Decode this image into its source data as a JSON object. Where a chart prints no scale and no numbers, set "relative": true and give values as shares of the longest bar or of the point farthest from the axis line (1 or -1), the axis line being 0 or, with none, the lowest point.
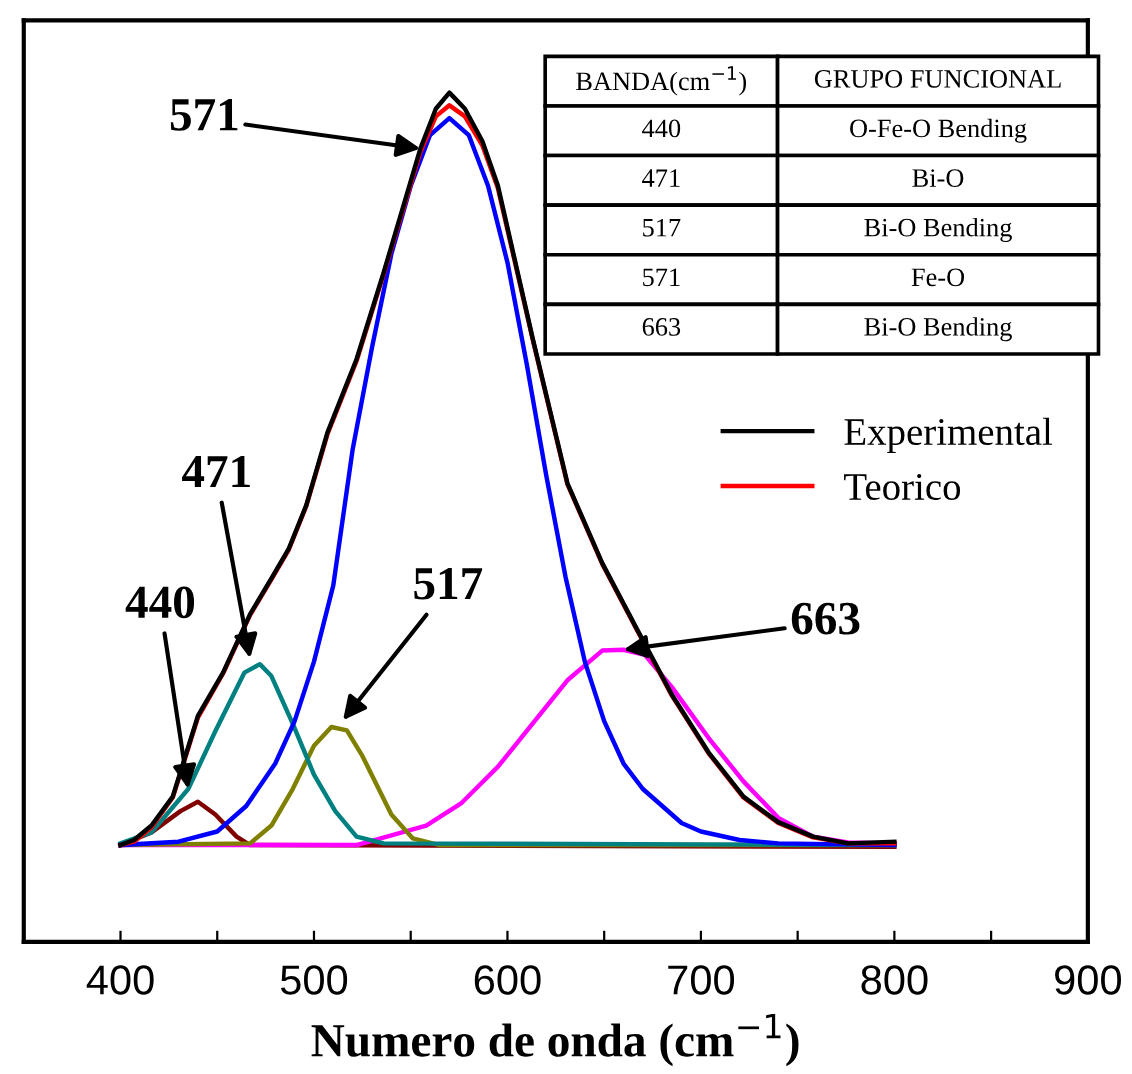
{
  "chart_data": {
    "type": "line",
    "relative": true,
    "xlabel": "Numero de onda (cm$^{−1}$)",
    "xlim": [
      350,
      900
    ],
    "xticks": [
      {
        "value": 350,
        "label": null
      },
      400,
      {
        "value": 450,
        "label": null
      },
      500,
      {
        "value": 550,
        "label": null
      },
      600,
      {
        "value": 650,
        "label": null
      },
      700,
      {
        "value": 750,
        "label": null
      },
      800,
      {
        "value": 850,
        "label": null
      },
      900
    ],
    "tick_labels": "x",
    "grid": false,
    "legend": "right",
    "line_style": "solid",
    "marker": "none",
    "series": [
      {
        "name": "Experimental",
        "color": "#000000",
        "x": [
          400,
          407,
          416,
          427,
          440,
          453,
          467,
          478,
          487,
          496,
          507,
          522,
          536,
          555,
          563,
          570,
          578,
          587,
          595,
          613,
          631,
          649,
          667,
          685,
          704,
          722,
          740,
          758,
          776,
          800
        ],
        "values": [
          0.114,
          0.12,
          0.137,
          0.171,
          0.266,
          0.317,
          0.386,
          0.428,
          0.463,
          0.514,
          0.6,
          0.686,
          0.788,
          0.934,
          0.981,
          1,
          0.981,
          0.943,
          0.891,
          0.711,
          0.54,
          0.446,
          0.368,
          0.291,
          0.223,
          0.171,
          0.141,
          0.124,
          0.116,
          0.118
        ]
      },
      {
        "name": "Teorico",
        "color": "#ff0000",
        "x": [
          400,
          407,
          416,
          427,
          440,
          453,
          467,
          478,
          487,
          496,
          507,
          522,
          536,
          555,
          563,
          570,
          578,
          587,
          595,
          613,
          631,
          649,
          667,
          685,
          704,
          722,
          740,
          758,
          776,
          800
        ],
        "values": [
          0.114,
          0.118,
          0.135,
          0.17,
          0.264,
          0.316,
          0.385,
          0.427,
          0.462,
          0.513,
          0.598,
          0.684,
          0.786,
          0.93,
          0.972,
          0.985,
          0.972,
          0.938,
          0.888,
          0.71,
          0.539,
          0.445,
          0.367,
          0.29,
          0.222,
          0.17,
          0.14,
          0.123,
          0.116,
          0.116
        ]
      },
      {
        "color": "#0000ff",
        "x": [
          400,
          430,
          450,
          465,
          480,
          490,
          500,
          510,
          520,
          530,
          540,
          550,
          560,
          570,
          580,
          590,
          600,
          610,
          620,
          630,
          640,
          650,
          660,
          670,
          680,
          690,
          700,
          720,
          740,
          800
        ],
        "values": [
          0.114,
          0.118,
          0.13,
          0.16,
          0.21,
          0.26,
          0.33,
          0.42,
          0.58,
          0.7,
          0.81,
          0.89,
          0.95,
          0.97,
          0.95,
          0.89,
          0.8,
          0.68,
          0.55,
          0.43,
          0.33,
          0.26,
          0.21,
          0.18,
          0.16,
          0.14,
          0.13,
          0.12,
          0.116,
          0.114
        ]
      },
      {
        "color": "#008080",
        "x": [
          400,
          416,
          435,
          449,
          464,
          472,
          478,
          489,
          500,
          511,
          522,
          536,
          800
        ],
        "values": [
          0.116,
          0.129,
          0.18,
          0.248,
          0.317,
          0.327,
          0.313,
          0.257,
          0.197,
          0.154,
          0.124,
          0.116,
          0.114
        ]
      },
      {
        "color": "#808000",
        "x": [
          400,
          467,
          478,
          489,
          500,
          509,
          517,
          525,
          540,
          551,
          565,
          800
        ],
        "values": [
          0.114,
          0.116,
          0.137,
          0.18,
          0.231,
          0.253,
          0.249,
          0.219,
          0.15,
          0.122,
          0.114,
          0.114
        ]
      },
      {
        "color": "#ff00ff",
        "x": [
          400,
          522,
          558,
          576,
          595,
          613,
          631,
          649,
          660,
          671,
          685,
          704,
          722,
          740,
          758,
          776,
          800
        ],
        "values": [
          0.114,
          0.114,
          0.137,
          0.163,
          0.206,
          0.257,
          0.308,
          0.343,
          0.344,
          0.338,
          0.3,
          0.24,
          0.189,
          0.146,
          0.124,
          0.117,
          0.116
        ]
      },
      {
        "color": "#800000",
        "x": [
          400,
          416,
          431,
          440,
          449,
          460,
          467,
          800
        ],
        "values": [
          0.114,
          0.129,
          0.154,
          0.165,
          0.15,
          0.124,
          0.114,
          0.112
        ]
      }
    ],
    "annotations": [
      {
        "text": "571",
        "x": 555,
        "y": 0.934
      },
      {
        "text": "471",
        "x": 467,
        "y": 0.334
      },
      {
        "text": "440",
        "x": 435,
        "y": 0.18
      },
      {
        "text": "517",
        "x": 515,
        "y": 0.261
      },
      {
        "text": "663",
        "x": 660,
        "y": 0.344
      },
      "BANDA(cm$^{−1}$)",
      "GRUPO FUNCIONAL",
      "440",
      "O-Fe-O Bending",
      "471",
      "Bi-O",
      "517",
      "Bi-O Bending",
      "571",
      "Fe-O",
      "663",
      "Bi-O Bending"
    ]
  }
}
